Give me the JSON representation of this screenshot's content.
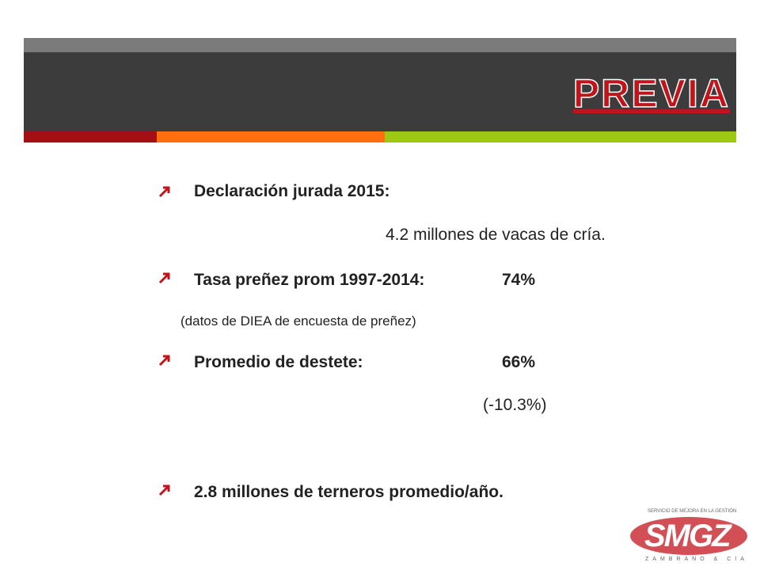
{
  "header": {
    "title": "PREVIA"
  },
  "items": [
    {
      "label": "Declaración jurada 2015:",
      "detail": "4.2 millones de vacas de cría."
    },
    {
      "label": "Tasa preñez prom 1997-2014:",
      "value": "74%",
      "note": "(datos de DIEA de encuesta de preñez)"
    },
    {
      "label": "Promedio de destete:",
      "value": "66%",
      "note": "(-10.3%)"
    },
    {
      "label": "2.8 millones de terneros promedio/año."
    }
  ],
  "logo": {
    "tagline": "SERVICIO DE MEJORA EN LA GESTIÓN",
    "name": "SMGZ",
    "subtitle": "ZAMBRANO & CIA"
  }
}
